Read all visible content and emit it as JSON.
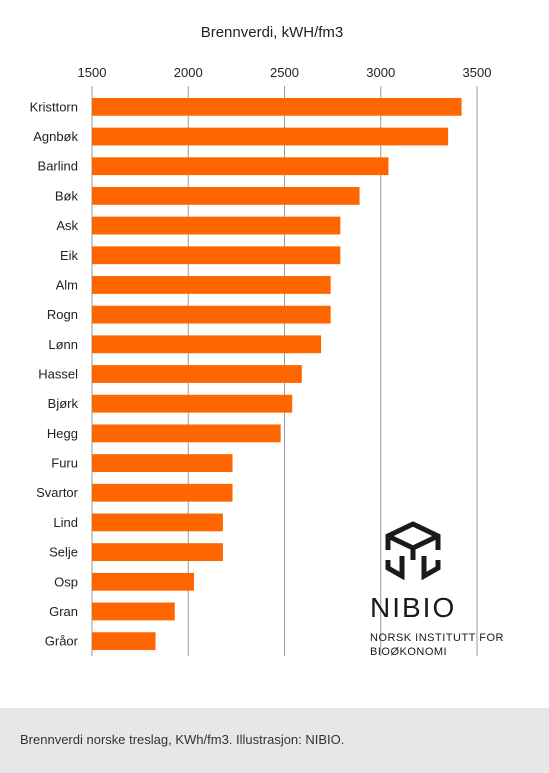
{
  "chart_data": {
    "type": "bar",
    "orientation": "horizontal",
    "title": "Brennverdi, kWH/fm3",
    "xlabel": "",
    "ylabel": "",
    "xlim": [
      1500,
      3500
    ],
    "xticks": [
      1500,
      2000,
      2500,
      3000,
      3500
    ],
    "x_axis_position": "top",
    "grid": true,
    "legend": "none",
    "bar_color": "#ff6600",
    "categories": [
      "Kristtorn",
      "Agnbøk",
      "Barlind",
      "Bøk",
      "Ask",
      "Eik",
      "Alm",
      "Rogn",
      "Lønn",
      "Hassel",
      "Bjørk",
      "Hegg",
      "Furu",
      "Svartor",
      "Lind",
      "Selje",
      "Osp",
      "Gran",
      "Gråor"
    ],
    "values": [
      3420,
      3350,
      3040,
      2890,
      2790,
      2790,
      2740,
      2740,
      2690,
      2590,
      2540,
      2480,
      2230,
      2230,
      2180,
      2180,
      2030,
      1930,
      1830
    ]
  },
  "logo": {
    "name": "NIBIO",
    "subtitle_line1": "NORSK INSTITUTT FOR",
    "subtitle_line2": "BIOØKONOMI"
  },
  "caption": "Brennverdi norske treslag, KWh/fm3. Illustrasjon: NIBIO."
}
